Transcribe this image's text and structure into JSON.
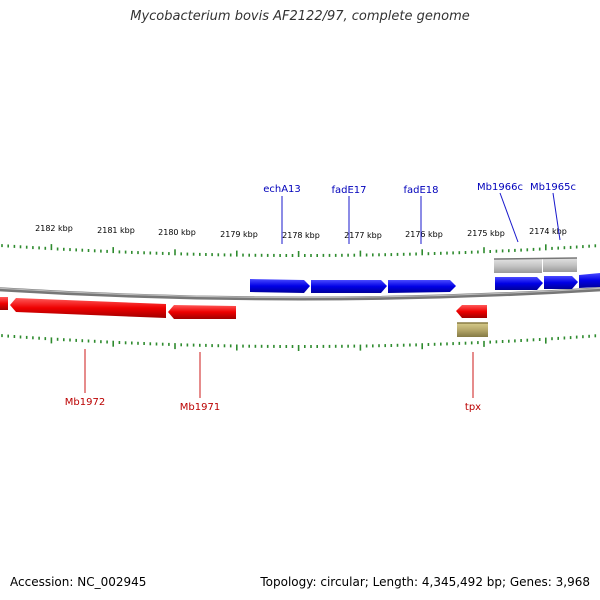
{
  "title": "Mycobacterium bovis AF2122/97, complete genome",
  "footer": {
    "accession": "Accession: NC_002945",
    "summary": "Topology: circular; Length: 4,345,492 bp; Genes: 3,968"
  },
  "colors": {
    "forward_gene": "#0000ee",
    "reverse_gene": "#ee0000",
    "other_feature": "#c0c0c0",
    "ruler_ticks": "#2e8b2e",
    "backbone": "#888888",
    "gold_feature": "#b5a76a"
  },
  "scale": {
    "unit": "kbp",
    "tick_labels": [
      "2182 kbp",
      "2181 kbp",
      "2180 kbp",
      "2179 kbp",
      "2178 kbp",
      "2177 kbp",
      "2176 kbp",
      "2175 kbp",
      "2174 kbp"
    ]
  },
  "gene_labels": {
    "forward": [
      "echA13",
      "fadE17",
      "fadE18",
      "Mb1966c",
      "Mb1965c"
    ],
    "reverse": [
      "Mb1972",
      "Mb1971",
      "tpx"
    ]
  }
}
